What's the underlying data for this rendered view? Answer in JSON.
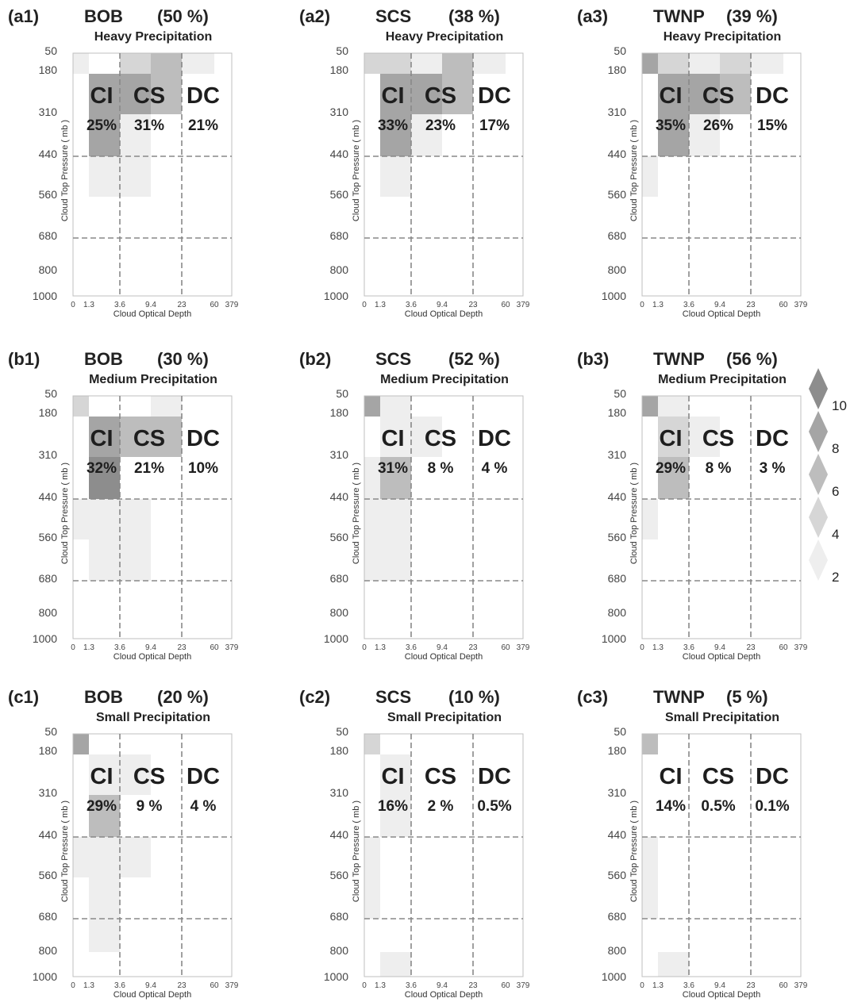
{
  "axes": {
    "y_ticks": [
      "50",
      "180",
      "310",
      "440",
      "560",
      "680",
      "800",
      "1000"
    ],
    "x_ticks": [
      "0",
      "1.3",
      "3.6",
      "9.4",
      "23",
      "60",
      "379"
    ],
    "xlabel": "Cloud Optical Depth",
    "ylabel": "Cloud Top Pressure ( mb )",
    "type_labels": [
      "CI",
      "CS",
      "DC"
    ]
  },
  "legend": {
    "levels": [
      "10",
      "8",
      "6",
      "4",
      "2"
    ],
    "colors": [
      "#8d8d8d",
      "#a5a5a5",
      "#bdbdbd",
      "#d6d6d6",
      "#eeeeee"
    ]
  },
  "chart_data": [
    {
      "type": "heatmap",
      "tag": "(a1)",
      "region": "BOB",
      "pct": "(50 %)",
      "title": "Heavy Precipitation",
      "type_values": [
        "25%",
        "31%",
        "21%"
      ],
      "cells": [
        [
          0,
          0,
          2
        ],
        [
          2,
          0,
          4
        ],
        [
          3,
          0,
          6
        ],
        [
          4,
          0,
          2
        ],
        [
          1,
          1,
          8
        ],
        [
          2,
          1,
          8
        ],
        [
          3,
          1,
          6
        ],
        [
          1,
          2,
          8
        ],
        [
          2,
          2,
          2
        ],
        [
          1,
          3,
          2
        ],
        [
          2,
          3,
          2
        ]
      ]
    },
    {
      "type": "heatmap",
      "tag": "(a2)",
      "region": "SCS",
      "pct": "(38 %)",
      "title": "Heavy Precipitation",
      "type_values": [
        "33%",
        "23%",
        "17%"
      ],
      "cells": [
        [
          0,
          0,
          4
        ],
        [
          1,
          0,
          4
        ],
        [
          2,
          0,
          2
        ],
        [
          3,
          0,
          6
        ],
        [
          4,
          0,
          2
        ],
        [
          1,
          1,
          8
        ],
        [
          2,
          1,
          8
        ],
        [
          3,
          1,
          6
        ],
        [
          1,
          2,
          8
        ],
        [
          2,
          2,
          2
        ],
        [
          1,
          3,
          2
        ]
      ]
    },
    {
      "type": "heatmap",
      "tag": "(a3)",
      "region": "TWNP",
      "pct": "(39 %)",
      "title": "Heavy Precipitation",
      "type_values": [
        "35%",
        "26%",
        "15%"
      ],
      "cells": [
        [
          0,
          0,
          8
        ],
        [
          1,
          0,
          4
        ],
        [
          2,
          0,
          2
        ],
        [
          3,
          0,
          4
        ],
        [
          4,
          0,
          2
        ],
        [
          1,
          1,
          8
        ],
        [
          2,
          1,
          8
        ],
        [
          3,
          1,
          6
        ],
        [
          1,
          2,
          8
        ],
        [
          2,
          2,
          2
        ],
        [
          0,
          3,
          2
        ]
      ]
    },
    {
      "type": "heatmap",
      "tag": "(b1)",
      "region": "BOB",
      "pct": "(30 %)",
      "title": "Medium Precipitation",
      "type_values": [
        "32%",
        "21%",
        "10%"
      ],
      "cells": [
        [
          0,
          0,
          4
        ],
        [
          3,
          0,
          2
        ],
        [
          1,
          1,
          8
        ],
        [
          2,
          1,
          6
        ],
        [
          3,
          1,
          6
        ],
        [
          1,
          2,
          10
        ],
        [
          0,
          3,
          2
        ],
        [
          1,
          3,
          2
        ],
        [
          2,
          3,
          2
        ],
        [
          1,
          4,
          2
        ],
        [
          2,
          4,
          2
        ]
      ]
    },
    {
      "type": "heatmap",
      "tag": "(b2)",
      "region": "SCS",
      "pct": "(52 %)",
      "title": "Medium Precipitation",
      "type_values": [
        "31%",
        "8 %",
        "4 %"
      ],
      "cells": [
        [
          0,
          0,
          8
        ],
        [
          1,
          0,
          2
        ],
        [
          1,
          1,
          2
        ],
        [
          2,
          1,
          2
        ],
        [
          0,
          2,
          2
        ],
        [
          1,
          2,
          6
        ],
        [
          0,
          3,
          2
        ],
        [
          1,
          3,
          2
        ],
        [
          0,
          4,
          2
        ],
        [
          1,
          4,
          2
        ]
      ]
    },
    {
      "type": "heatmap",
      "tag": "(b3)",
      "region": "TWNP",
      "pct": "(56 %)",
      "title": "Medium Precipitation",
      "type_values": [
        "29%",
        "8 %",
        "3 %"
      ],
      "cells": [
        [
          0,
          0,
          8
        ],
        [
          1,
          0,
          2
        ],
        [
          1,
          1,
          4
        ],
        [
          2,
          1,
          2
        ],
        [
          1,
          2,
          6
        ],
        [
          0,
          3,
          2
        ]
      ]
    },
    {
      "type": "heatmap",
      "tag": "(c1)",
      "region": "BOB",
      "pct": "(20 %)",
      "title": "Small Precipitation",
      "type_values": [
        "29%",
        "9 %",
        "4 %"
      ],
      "cells": [
        [
          0,
          0,
          8
        ],
        [
          1,
          1,
          2
        ],
        [
          2,
          1,
          2
        ],
        [
          1,
          2,
          6
        ],
        [
          0,
          3,
          2
        ],
        [
          1,
          3,
          2
        ],
        [
          2,
          3,
          2
        ],
        [
          1,
          4,
          2
        ],
        [
          1,
          5,
          2
        ]
      ]
    },
    {
      "type": "heatmap",
      "tag": "(c2)",
      "region": "SCS",
      "pct": "(10 %)",
      "title": "Small Precipitation",
      "type_values": [
        "16%",
        "2 %",
        "0.5%"
      ],
      "cells": [
        [
          0,
          0,
          4
        ],
        [
          1,
          1,
          2
        ],
        [
          1,
          2,
          2
        ],
        [
          0,
          3,
          2
        ],
        [
          0,
          4,
          2
        ],
        [
          1,
          6,
          2
        ]
      ]
    },
    {
      "type": "heatmap",
      "tag": "(c3)",
      "region": "TWNP",
      "pct": "(5 %)",
      "title": "Small Precipitation",
      "type_values": [
        "14%",
        "0.5%",
        "0.1%"
      ],
      "cells": [
        [
          0,
          0,
          6
        ],
        [
          0,
          3,
          2
        ],
        [
          0,
          4,
          2
        ],
        [
          1,
          6,
          2
        ]
      ]
    }
  ]
}
